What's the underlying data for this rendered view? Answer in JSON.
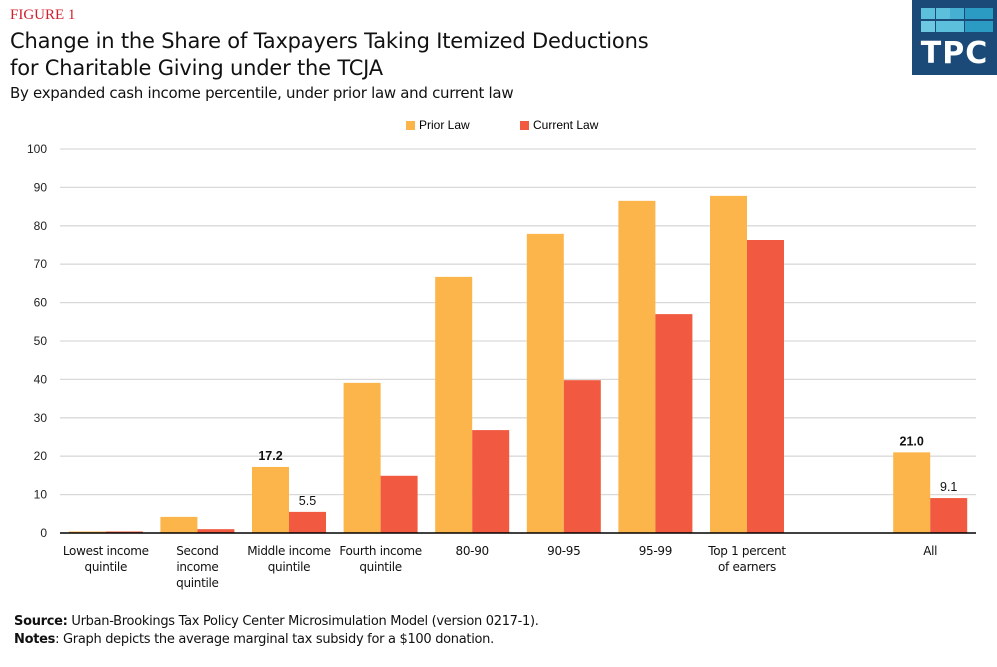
{
  "header": {
    "figure_label": "FIGURE 1",
    "title_line1": "Change in the Share of Taxpayers Taking Itemized Deductions",
    "title_line2": "for Charitable Giving under the TCJA",
    "subtitle": "By expanded cash income percentile, under prior law and current law"
  },
  "logo": {
    "text": "TPC",
    "icon": "tpc-logo-grid-icon",
    "bg_color": "#1b4a78"
  },
  "footer": {
    "source_label": "Source:",
    "source_text": " Urban-Brookings Tax Policy Center Microsimulation Model (version 0217-1).",
    "notes_label": "Notes",
    "notes_text": ": Graph depicts the average marginal tax subsidy for a $100 donation."
  },
  "chart_data": {
    "type": "bar",
    "title": "Change in the Share of Taxpayers Taking Itemized Deductions for Charitable Giving under the TCJA",
    "subtitle": "By expanded cash income percentile, under prior law and current law",
    "xlabel": "",
    "ylabel": "",
    "ylim": [
      0,
      100
    ],
    "yticks": [
      0,
      10,
      20,
      30,
      40,
      50,
      60,
      70,
      80,
      90,
      100
    ],
    "grid": true,
    "legend_position": "top-center",
    "categories": [
      [
        "Lowest income",
        "quintile"
      ],
      [
        "Second",
        "income",
        "quintile"
      ],
      [
        "Middle income",
        "quintile"
      ],
      [
        "Fourth income",
        "quintile"
      ],
      [
        "80-90"
      ],
      [
        "90-95"
      ],
      [
        "95-99"
      ],
      [
        "Top 1 percent",
        "of earners"
      ],
      [
        ""
      ],
      [
        "All"
      ]
    ],
    "series": [
      {
        "name": "Prior Law",
        "color": "#fbb54b",
        "values": [
          0.4,
          4.2,
          17.2,
          39.1,
          66.7,
          77.9,
          86.5,
          87.8,
          null,
          21.0
        ],
        "labels": [
          null,
          null,
          "17.2",
          null,
          null,
          null,
          null,
          null,
          null,
          "21.0"
        ]
      },
      {
        "name": "Current Law",
        "color": "#f15a40",
        "values": [
          0.4,
          1.0,
          5.5,
          14.9,
          26.8,
          39.8,
          57.0,
          76.3,
          null,
          9.1
        ],
        "labels": [
          null,
          null,
          "5.5",
          null,
          null,
          null,
          null,
          null,
          null,
          "9.1"
        ]
      }
    ]
  }
}
